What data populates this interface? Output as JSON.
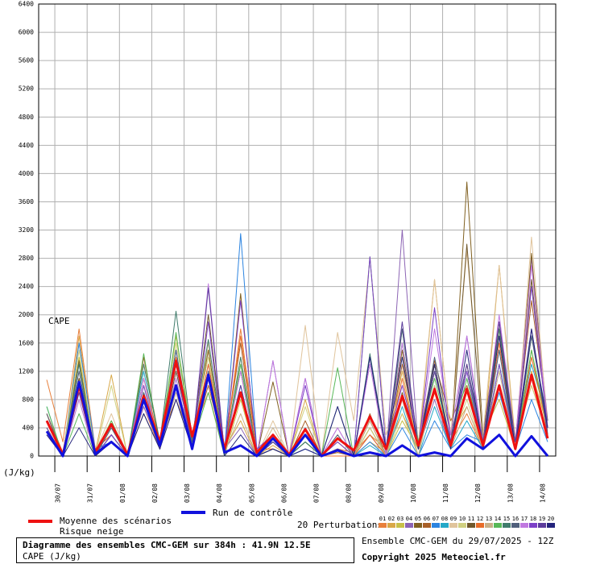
{
  "chart_data": {
    "type": "line",
    "title": "Diagramme des ensembles CMC-GEM sur 384h : 41.9N 12.5E",
    "subtitle": "CAPE (J/kg)",
    "annotation": "CAPE",
    "y_unit": "(J/kg)",
    "snow_label": "Risque neige",
    "perturbations_label": "20 Perturbations",
    "run_info": "Ensemble CMC-GEM du 29/07/2025 - 12Z",
    "copyright": "Copyright 2025 Meteociel.fr",
    "ylim": [
      0,
      6400
    ],
    "yticks": [
      0,
      400,
      800,
      1200,
      1600,
      2000,
      2400,
      2800,
      3200,
      3600,
      4000,
      4400,
      4800,
      5200,
      5600,
      6000,
      6400
    ],
    "xlim": [
      0,
      384
    ],
    "xticks": [
      {
        "value": 12,
        "label": "30/07"
      },
      {
        "value": 36,
        "label": "31/07"
      },
      {
        "value": 60,
        "label": "01/08"
      },
      {
        "value": 84,
        "label": "02/08"
      },
      {
        "value": 108,
        "label": "03/08"
      },
      {
        "value": 132,
        "label": "04/08"
      },
      {
        "value": 156,
        "label": "05/08"
      },
      {
        "value": 180,
        "label": "06/08"
      },
      {
        "value": 204,
        "label": "07/08"
      },
      {
        "value": 228,
        "label": "08/08"
      },
      {
        "value": 252,
        "label": "09/08"
      },
      {
        "value": 276,
        "label": "10/08"
      },
      {
        "value": 300,
        "label": "11/08"
      },
      {
        "value": 324,
        "label": "12/08"
      },
      {
        "value": 348,
        "label": "13/08"
      },
      {
        "value": 372,
        "label": "14/08"
      }
    ],
    "grid": true,
    "x": [
      6,
      18,
      30,
      42,
      54,
      66,
      78,
      90,
      102,
      114,
      126,
      138,
      150,
      162,
      174,
      186,
      198,
      210,
      222,
      234,
      246,
      258,
      270,
      282,
      294,
      306,
      318,
      330,
      342,
      354,
      366,
      378
    ],
    "series": [
      {
        "name": "Moyenne des scénarios",
        "color": "#ee1111",
        "width": 3,
        "values": [
          500,
          20,
          1000,
          50,
          450,
          20,
          850,
          200,
          1350,
          280,
          1150,
          100,
          900,
          50,
          300,
          20,
          380,
          0,
          250,
          80,
          560,
          100,
          850,
          150,
          950,
          150,
          950,
          150,
          1000,
          100,
          1150,
          250
        ]
      },
      {
        "name": "Run de contrôle",
        "color": "#1111dd",
        "width": 3,
        "values": [
          350,
          0,
          1050,
          30,
          200,
          0,
          800,
          150,
          1000,
          100,
          1150,
          50,
          150,
          0,
          250,
          0,
          300,
          0,
          80,
          0,
          50,
          0,
          150,
          0,
          50,
          0,
          250,
          100,
          300,
          0,
          280,
          0
        ]
      },
      {
        "name": "01",
        "color": "#e8803c",
        "width": 1,
        "values": [
          1080,
          200,
          1800,
          100,
          300,
          0,
          700,
          100,
          1400,
          300,
          900,
          50,
          1800,
          100,
          200,
          0,
          300,
          0,
          100,
          50,
          300,
          100,
          600,
          100,
          900,
          200,
          600,
          100,
          1000,
          200,
          1000,
          300
        ]
      },
      {
        "name": "02",
        "color": "#d8a848",
        "width": 1,
        "values": [
          600,
          0,
          1700,
          50,
          1150,
          0,
          900,
          200,
          1000,
          250,
          1200,
          100,
          500,
          0,
          150,
          0,
          800,
          0,
          100,
          0,
          200,
          50,
          1200,
          100,
          2500,
          300,
          700,
          100,
          2700,
          200,
          1200,
          400
        ]
      },
      {
        "name": "03",
        "color": "#c8c048",
        "width": 1,
        "values": [
          400,
          0,
          1400,
          50,
          500,
          0,
          1300,
          200,
          1700,
          300,
          1500,
          0,
          800,
          0,
          300,
          0,
          200,
          0,
          50,
          0,
          400,
          0,
          500,
          100,
          1300,
          200,
          900,
          300,
          800,
          100,
          1500,
          300
        ]
      },
      {
        "name": "04",
        "color": "#8c64b4",
        "width": 1,
        "values": [
          300,
          0,
          900,
          0,
          200,
          0,
          700,
          150,
          1200,
          200,
          1300,
          100,
          400,
          0,
          1350,
          0,
          1100,
          0,
          400,
          0,
          300,
          0,
          3200,
          100,
          800,
          100,
          1700,
          100,
          1900,
          200,
          2800,
          500
        ]
      },
      {
        "name": "05",
        "color": "#806020",
        "width": 1,
        "values": [
          500,
          50,
          1350,
          0,
          300,
          0,
          600,
          100,
          1300,
          150,
          1500,
          50,
          2300,
          0,
          1050,
          0,
          300,
          0,
          200,
          0,
          400,
          0,
          1500,
          100,
          1300,
          100,
          3880,
          300,
          1900,
          100,
          2870,
          300
        ]
      },
      {
        "name": "06",
        "color": "#a86028",
        "width": 1,
        "values": [
          600,
          0,
          1100,
          0,
          200,
          0,
          1400,
          200,
          800,
          200,
          1000,
          100,
          1600,
          0,
          100,
          0,
          500,
          0,
          50,
          0,
          600,
          0,
          1300,
          200,
          1350,
          500,
          1000,
          200,
          1800,
          200,
          2200,
          500
        ]
      },
      {
        "name": "07",
        "color": "#2c84e0",
        "width": 1,
        "values": [
          350,
          0,
          1600,
          100,
          200,
          0,
          800,
          200,
          1500,
          100,
          1100,
          50,
          3150,
          100,
          200,
          0,
          100,
          0,
          0,
          0,
          200,
          0,
          400,
          0,
          500,
          100,
          300,
          200,
          900,
          100,
          800,
          200
        ]
      },
      {
        "name": "08",
        "color": "#24a8c8",
        "width": 1,
        "values": [
          700,
          0,
          1000,
          0,
          300,
          0,
          1200,
          100,
          1100,
          100,
          1200,
          50,
          1000,
          0,
          300,
          0,
          400,
          0,
          100,
          0,
          150,
          0,
          700,
          0,
          700,
          100,
          500,
          100,
          1300,
          200,
          1300,
          500
        ]
      },
      {
        "name": "09",
        "color": "#e0c49c",
        "width": 1,
        "values": [
          300,
          50,
          1200,
          50,
          600,
          0,
          1000,
          200,
          1300,
          200,
          1600,
          100,
          1300,
          0,
          500,
          0,
          1850,
          0,
          1750,
          500,
          2800,
          300,
          1000,
          200,
          2500,
          300,
          2900,
          300,
          2700,
          100,
          3100,
          400
        ]
      },
      {
        "name": "10",
        "color": "#d0d080",
        "width": 1,
        "values": [
          500,
          0,
          1500,
          0,
          1000,
          0,
          1000,
          200,
          1600,
          300,
          1400,
          50,
          1400,
          0,
          300,
          0,
          700,
          0,
          200,
          0,
          400,
          0,
          600,
          0,
          1200,
          200,
          800,
          100,
          1500,
          200,
          1000,
          300
        ]
      },
      {
        "name": "11",
        "color": "#70582c",
        "width": 1,
        "values": [
          400,
          0,
          1100,
          0,
          400,
          0,
          900,
          100,
          1200,
          200,
          2000,
          100,
          1200,
          0,
          200,
          0,
          200,
          0,
          100,
          0,
          500,
          0,
          900,
          100,
          1300,
          100,
          3000,
          200,
          1700,
          100,
          2500,
          400
        ]
      },
      {
        "name": "12",
        "color": "#e86c28",
        "width": 1,
        "values": [
          600,
          50,
          1000,
          100,
          300,
          0,
          1100,
          200,
          1400,
          200,
          1300,
          50,
          1700,
          100,
          100,
          0,
          300,
          0,
          0,
          0,
          300,
          0,
          1100,
          100,
          900,
          200,
          1300,
          100,
          1600,
          100,
          1400,
          400
        ]
      },
      {
        "name": "13",
        "color": "#c8b088",
        "width": 1,
        "values": [
          400,
          0,
          800,
          0,
          200,
          0,
          600,
          100,
          900,
          100,
          1200,
          50,
          600,
          0,
          400,
          0,
          300,
          0,
          300,
          0,
          500,
          0,
          800,
          0,
          1000,
          100,
          700,
          100,
          1200,
          100,
          1100,
          300
        ]
      },
      {
        "name": "14",
        "color": "#58b858",
        "width": 1,
        "values": [
          700,
          0,
          600,
          0,
          500,
          0,
          1450,
          150,
          1750,
          150,
          900,
          0,
          1300,
          0,
          200,
          0,
          200,
          0,
          1250,
          0,
          2820,
          100,
          1600,
          200,
          1100,
          200,
          1100,
          100,
          1300,
          100,
          1500,
          400
        ]
      },
      {
        "name": "15",
        "color": "#407c6c",
        "width": 1,
        "values": [
          300,
          0,
          1300,
          0,
          300,
          0,
          1300,
          200,
          2050,
          250,
          1650,
          50,
          1400,
          0,
          100,
          0,
          200,
          0,
          700,
          0,
          1450,
          100,
          1800,
          100,
          1200,
          200,
          1300,
          100,
          1800,
          100,
          1700,
          500
        ]
      },
      {
        "name": "16",
        "color": "#50607c",
        "width": 1,
        "values": [
          600,
          0,
          1200,
          0,
          400,
          0,
          900,
          100,
          1500,
          200,
          1200,
          50,
          900,
          0,
          200,
          0,
          300,
          0,
          300,
          0,
          1400,
          0,
          1800,
          100,
          1400,
          300,
          1200,
          100,
          1500,
          100,
          1700,
          400
        ]
      },
      {
        "name": "17",
        "color": "#c078e0",
        "width": 1,
        "values": [
          300,
          0,
          800,
          0,
          200,
          0,
          1100,
          100,
          1100,
          100,
          2440,
          50,
          1200,
          0,
          1350,
          0,
          1100,
          0,
          400,
          0,
          1300,
          0,
          1600,
          100,
          1800,
          300,
          1700,
          200,
          2000,
          200,
          2700,
          400
        ]
      },
      {
        "name": "18",
        "color": "#7c40c8",
        "width": 1,
        "values": [
          500,
          0,
          1000,
          0,
          300,
          0,
          1000,
          100,
          1300,
          100,
          1900,
          50,
          2200,
          100,
          300,
          0,
          1000,
          0,
          200,
          0,
          2820,
          100,
          1000,
          100,
          2100,
          200,
          1200,
          100,
          1300,
          100,
          2400,
          400
        ]
      },
      {
        "name": "19",
        "color": "#5c3c9c",
        "width": 1,
        "values": [
          400,
          0,
          900,
          0,
          200,
          0,
          800,
          100,
          1000,
          100,
          2380,
          50,
          1000,
          0,
          200,
          0,
          300,
          0,
          100,
          0,
          1400,
          100,
          1900,
          100,
          1200,
          200,
          1300,
          200,
          1900,
          200,
          1800,
          300
        ]
      },
      {
        "name": "20",
        "color": "#24247c",
        "width": 1,
        "values": [
          300,
          0,
          400,
          0,
          200,
          0,
          600,
          100,
          800,
          100,
          1100,
          0,
          300,
          0,
          100,
          0,
          100,
          0,
          700,
          0,
          1400,
          100,
          1400,
          100,
          1300,
          100,
          1500,
          100,
          1700,
          100,
          1800,
          400
        ]
      }
    ]
  }
}
